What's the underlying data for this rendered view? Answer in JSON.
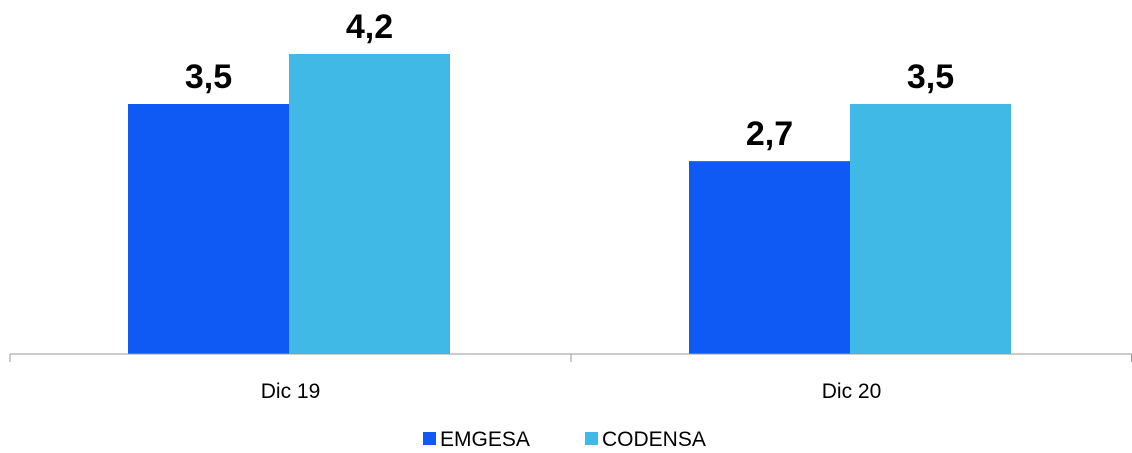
{
  "chart_data": {
    "type": "bar",
    "title": "",
    "xlabel": "",
    "ylabel": "",
    "categories": [
      "Dic 19",
      "Dic 20"
    ],
    "series": [
      {
        "name": "EMGESA",
        "values": [
          3.5,
          2.7
        ],
        "labels": [
          "3,5",
          "2,7"
        ],
        "color": "#0f5af5"
      },
      {
        "name": "CODENSA",
        "values": [
          4.2,
          3.5
        ],
        "labels": [
          "4,2",
          "3,5"
        ],
        "color": "#40b9e6"
      }
    ],
    "ylim": [
      0,
      4.2
    ],
    "grid": false,
    "legend_position": "bottom",
    "axis_color": "#9a9a9a"
  }
}
